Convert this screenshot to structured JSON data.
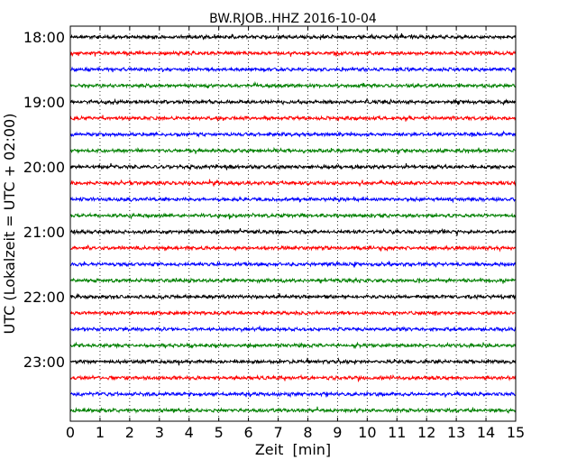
{
  "chart_data": {
    "type": "line",
    "title": "BW.RJOB..HHZ 2016-10-04",
    "xlabel": "Zeit  [min]",
    "ylabel": "UTC (Lokalzeit = UTC + 02:00)",
    "xlim": [
      0,
      15
    ],
    "x_ticks": [
      "0",
      "1",
      "2",
      "3",
      "4",
      "5",
      "6",
      "7",
      "8",
      "9",
      "10",
      "11",
      "12",
      "13",
      "14",
      "15"
    ],
    "y_ticks": [
      "18:00",
      "19:00",
      "20:00",
      "21:00",
      "22:00",
      "23:00"
    ],
    "rows_per_hour": 4,
    "row_count": 24,
    "trace_colors": [
      "#000000",
      "#ff0000",
      "#0000ff",
      "#008000"
    ],
    "grid": "vertical dotted lines at each minute"
  }
}
